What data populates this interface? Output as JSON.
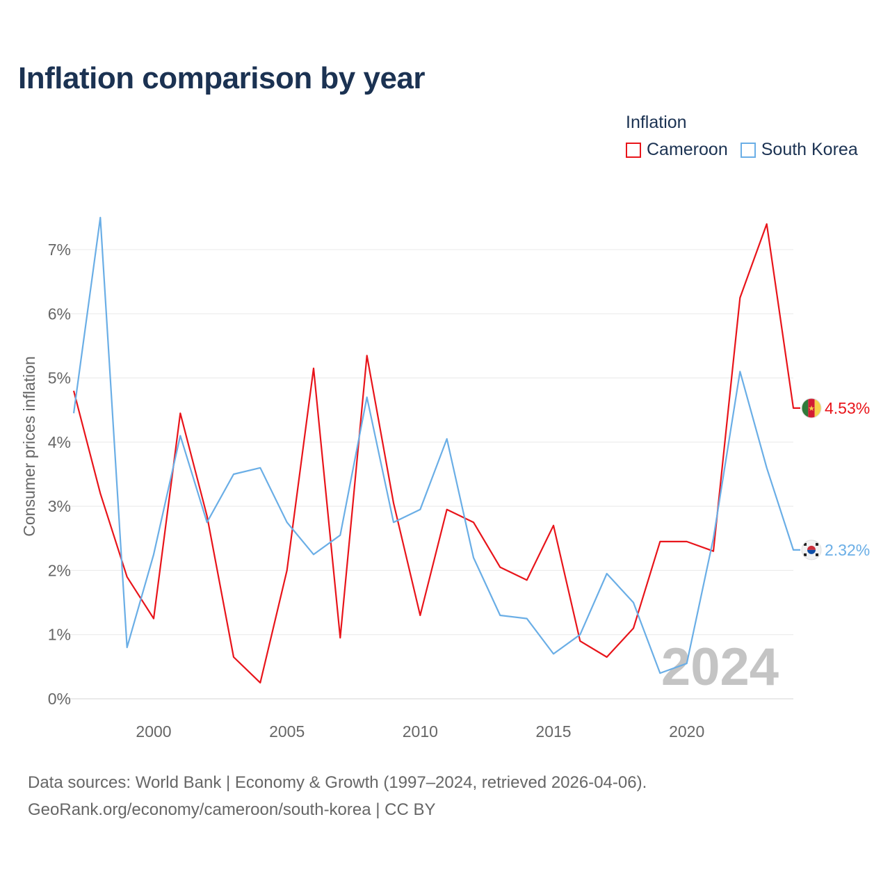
{
  "title": "Inflation comparison by year",
  "legend": {
    "title": "Inflation",
    "items": [
      {
        "label": "Cameroon",
        "color": "#e8141a"
      },
      {
        "label": "South Korea",
        "color": "#6aaee6"
      }
    ]
  },
  "watermark_year": "2024",
  "source": {
    "line1": "Data sources: World Bank | Economy & Growth (1997–2024, retrieved 2026-04-06).",
    "line2": "GeoRank.org/economy/cameroon/south-korea | CC BY"
  },
  "chart_data": {
    "type": "line",
    "title": "Inflation comparison by year",
    "xlabel": "",
    "ylabel": "Consumer prices inflation",
    "xlim": [
      1997,
      2024
    ],
    "ylim": [
      0,
      7.5
    ],
    "x_ticks": [
      2000,
      2005,
      2010,
      2015,
      2020
    ],
    "y_ticks": [
      0,
      1,
      2,
      3,
      4,
      5,
      6,
      7
    ],
    "y_tick_labels": [
      "0%",
      "1%",
      "2%",
      "3%",
      "4%",
      "5%",
      "6%",
      "7%"
    ],
    "grid": true,
    "x": [
      1997,
      1998,
      1999,
      2000,
      2001,
      2002,
      2003,
      2004,
      2005,
      2006,
      2007,
      2008,
      2009,
      2010,
      2011,
      2012,
      2013,
      2014,
      2015,
      2016,
      2017,
      2018,
      2019,
      2020,
      2021,
      2022,
      2023,
      2024
    ],
    "series": [
      {
        "name": "Cameroon",
        "color": "#e8141a",
        "flag": "cameroon-flag",
        "end_label": "4.53%",
        "values": [
          4.8,
          3.2,
          1.9,
          1.25,
          4.45,
          2.85,
          0.65,
          0.25,
          2.0,
          5.15,
          0.95,
          5.35,
          3.05,
          1.3,
          2.95,
          2.75,
          2.05,
          1.85,
          2.7,
          0.9,
          0.65,
          1.1,
          2.45,
          2.45,
          2.3,
          6.25,
          7.4,
          4.53
        ]
      },
      {
        "name": "South Korea",
        "color": "#6aaee6",
        "flag": "south-korea-flag",
        "end_label": "2.32%",
        "values": [
          4.45,
          7.5,
          0.8,
          2.25,
          4.1,
          2.75,
          3.5,
          3.6,
          2.75,
          2.25,
          2.55,
          4.7,
          2.75,
          2.95,
          4.05,
          2.2,
          1.3,
          1.25,
          0.7,
          1.0,
          1.95,
          1.5,
          0.4,
          0.55,
          2.5,
          5.1,
          3.6,
          2.32
        ]
      }
    ]
  }
}
